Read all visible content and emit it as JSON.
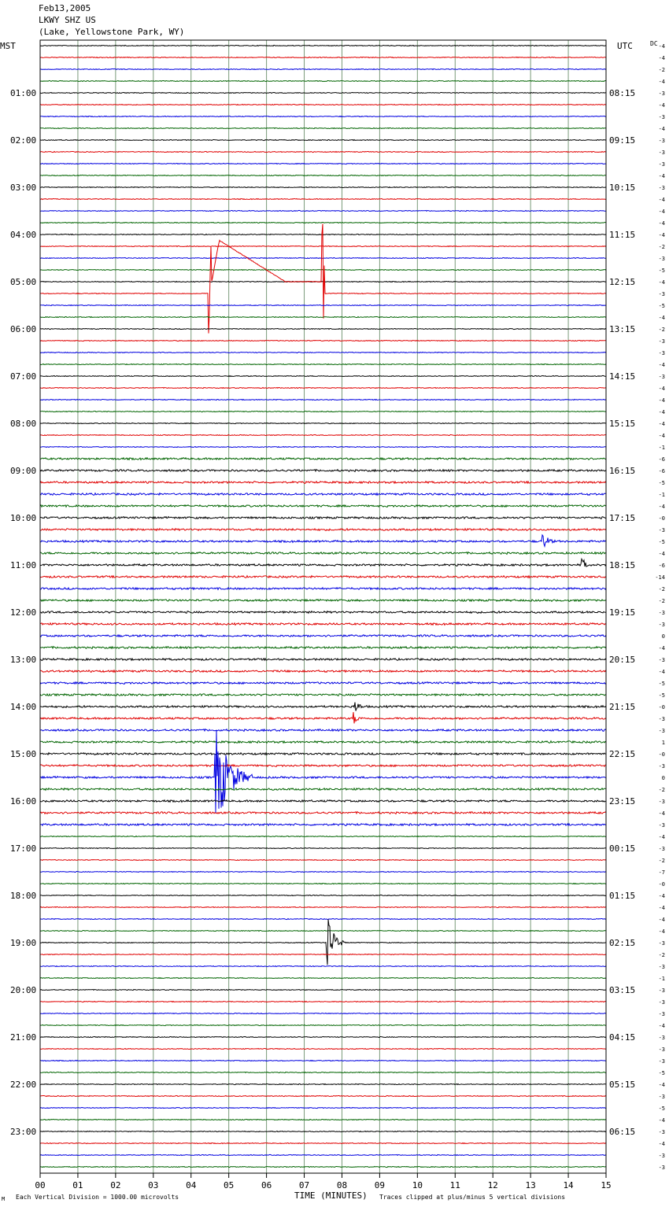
{
  "header": {
    "date": "Feb13,2005",
    "station": "LKWY SHZ US",
    "location": "(Lake, Yellowstone Park, WY)"
  },
  "left_zone": "MST",
  "right_zone": "UTC",
  "dc_label": "DC",
  "footer": {
    "scale_note": "Each Vertical Division = 1000.00 microvolts",
    "xlabel": "TIME (MINUTES)",
    "clip_note": "Traces clipped at plus/minus 5 vertical divisions",
    "corner_mark": "M"
  },
  "colors": {
    "trace_cycle": [
      "#000000",
      "#e00000",
      "#0000e0",
      "#006400"
    ],
    "grid": "#7a9a7a",
    "frame": "#000000"
  },
  "chart_data": {
    "type": "line",
    "title": "LKWY SHZ US",
    "xlabel": "TIME (MINUTES)",
    "xlim": [
      0,
      15
    ],
    "x_ticks": [
      "00",
      "01",
      "02",
      "03",
      "04",
      "05",
      "06",
      "07",
      "08",
      "09",
      "10",
      "11",
      "12",
      "13",
      "14",
      "15"
    ],
    "minutes_per_trace": 15,
    "trace_count": 96,
    "left_hour_labels": [
      "01:00",
      "02:00",
      "03:00",
      "04:00",
      "05:00",
      "06:00",
      "07:00",
      "08:00",
      "09:00",
      "10:00",
      "11:00",
      "12:00",
      "13:00",
      "14:00",
      "15:00",
      "16:00",
      "17:00",
      "18:00",
      "19:00",
      "20:00",
      "21:00",
      "22:00",
      "23:00"
    ],
    "right_hour_labels": [
      "08:15",
      "09:15",
      "10:15",
      "11:15",
      "12:15",
      "13:15",
      "14:15",
      "15:15",
      "16:15",
      "17:15",
      "18:15",
      "19:15",
      "20:15",
      "21:15",
      "22:15",
      "23:15",
      "00:15",
      "01:15",
      "02:15",
      "03:15",
      "04:15",
      "05:15",
      "06:15"
    ],
    "dc_offsets": [
      "-4",
      "-4",
      "-2",
      "-4",
      "-3",
      "-4",
      "-3",
      "-4",
      "-3",
      "-3",
      "-3",
      "-4",
      "-3",
      "-4",
      "-4",
      "-4",
      "-4",
      "-2",
      "-3",
      "-5",
      "-4",
      "-3",
      "-5",
      "-4",
      "-2",
      "-3",
      "-3",
      "-4",
      "-3",
      "-4",
      "-4",
      "-4",
      "-4",
      "-4",
      "-1",
      "-6",
      "-6",
      "-5",
      "-1",
      "-4",
      "-0",
      "-3",
      "-5",
      "-4",
      "-6",
      "-14",
      "-2",
      "-2",
      "-3",
      "-3",
      "0",
      "-4",
      "-3",
      "-4",
      "-5",
      "-5",
      "-0",
      "-3",
      "-3",
      "1",
      "-0",
      "-3",
      "0",
      "-2",
      "-3",
      "-4",
      "-3",
      "-4",
      "-3",
      "-2",
      "-7",
      "-0",
      "-4",
      "-4",
      "-4",
      "-4",
      "-3",
      "-2",
      "-3",
      "-1",
      "-3",
      "-3",
      "-3",
      "-4",
      "-3",
      "-3",
      "-3",
      "-5",
      "-4",
      "-3",
      "-5",
      "-4",
      "-3",
      "-4",
      "-3",
      "-3"
    ],
    "events": [
      {
        "type": "step_pulse",
        "trace": 21,
        "start_min": 4.5,
        "end_min": 7.5,
        "amplitude_div": 5,
        "note": "clipped calibration-like offset"
      },
      {
        "type": "earthquake",
        "trace": 62,
        "onset_min": 4.62,
        "duration_min": 1.0,
        "amplitude_div": 5
      },
      {
        "type": "earthquake",
        "trace": 76,
        "onset_min": 7.58,
        "duration_min": 0.5,
        "amplitude_div": 3
      },
      {
        "type": "burst",
        "trace": 44,
        "onset_min": 14.35,
        "duration_min": 0.2,
        "amplitude_div": 1.2
      },
      {
        "type": "burst",
        "trace": 57,
        "onset_min": 8.3,
        "duration_min": 0.3,
        "amplitude_div": 0.7
      },
      {
        "type": "burst",
        "trace": 56,
        "onset_min": 8.3,
        "duration_min": 0.4,
        "amplitude_div": 0.8
      },
      {
        "type": "burst",
        "trace": 42,
        "onset_min": 13.3,
        "duration_min": 0.5,
        "amplitude_div": 0.8
      }
    ]
  }
}
